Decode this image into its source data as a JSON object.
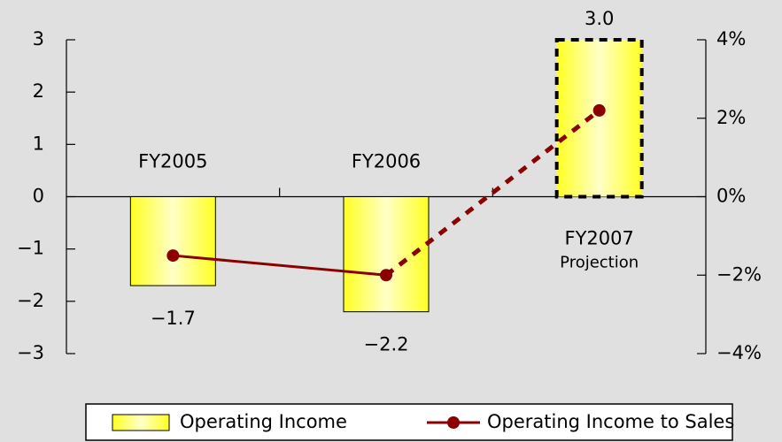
{
  "chart_data": {
    "type": "bar",
    "categories": [
      "FY2005",
      "FY2006",
      "FY2007"
    ],
    "annotations": [
      {
        "category": 2,
        "text": "Projection"
      }
    ],
    "projected": [
      false,
      false,
      true
    ],
    "series": [
      {
        "name": "Operating Income",
        "type": "bar",
        "color": "#ffff33",
        "values": [
          -1.7,
          -2.2,
          3.0
        ],
        "value_labels": [
          "−1.7",
          "−2.2",
          "3.0"
        ]
      },
      {
        "name": "Operating Income to Sales",
        "type": "line",
        "axis": "y2",
        "color": "#8b0000",
        "values": [
          -1.5,
          -2.0,
          2.2
        ]
      }
    ],
    "ylim": [
      -3,
      3
    ],
    "yticks": [
      {
        "value": -3,
        "label": "−3"
      },
      {
        "value": -2,
        "label": "−2"
      },
      {
        "value": -1,
        "label": "−1"
      },
      0,
      1,
      2,
      3
    ],
    "y2lim": [
      -4,
      4
    ],
    "y2ticks": [
      {
        "value": -4,
        "label": "−4%"
      },
      {
        "value": -2,
        "label": "−2%"
      },
      {
        "value": 0,
        "label": "0%"
      },
      {
        "value": 2,
        "label": "2%"
      },
      {
        "value": 4,
        "label": "4%"
      }
    ],
    "legend": "bottom"
  }
}
